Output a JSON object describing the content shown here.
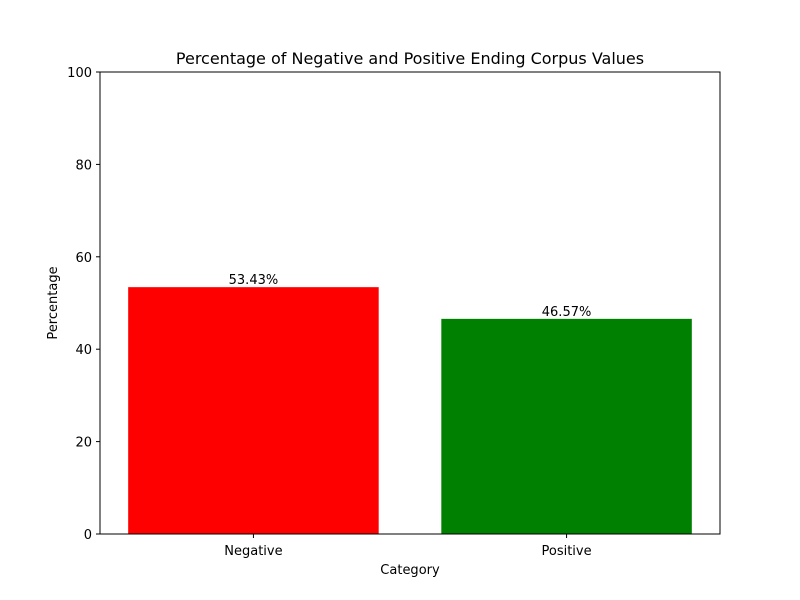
{
  "chart_data": {
    "type": "bar",
    "title": "Percentage of Negative and Positive Ending Corpus Values",
    "xlabel": "Category",
    "ylabel": "Percentage",
    "categories": [
      "Negative",
      "Positive"
    ],
    "values": [
      53.43,
      46.57
    ],
    "data_labels": [
      "53.43%",
      "46.57%"
    ],
    "colors": [
      "#ff0000",
      "#008000"
    ],
    "ylim": [
      0,
      100
    ],
    "yticks": [
      0,
      20,
      40,
      60,
      80,
      100
    ],
    "grid": false,
    "legend": "none"
  }
}
